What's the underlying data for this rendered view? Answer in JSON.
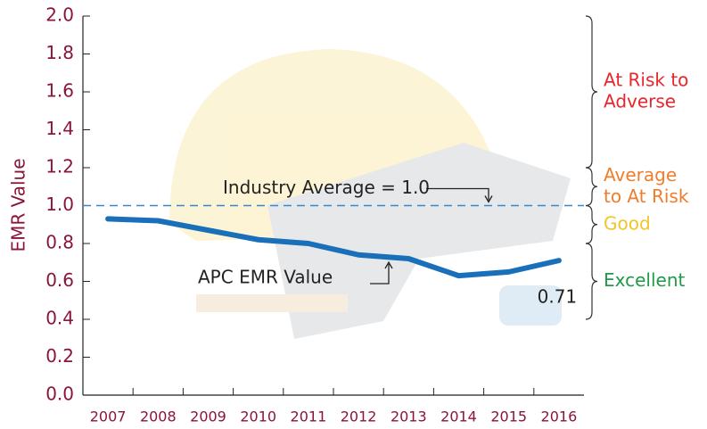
{
  "chart_data": {
    "type": "line",
    "y_label": "EMR Value",
    "categories": [
      "2007",
      "2008",
      "2009",
      "2010",
      "2011",
      "2012",
      "2013",
      "2014",
      "2015",
      "2016"
    ],
    "series": [
      {
        "name": "APC EMR Value",
        "color": "#1a6fba",
        "values": [
          0.93,
          0.92,
          0.87,
          0.82,
          0.8,
          0.74,
          0.72,
          0.63,
          0.65,
          0.71
        ]
      }
    ],
    "ylim": [
      0,
      2
    ],
    "yticks": [
      {
        "value": 0,
        "label": "0.0"
      },
      {
        "value": 0.2,
        "label": "0.2"
      },
      {
        "value": 0.4,
        "label": "0.4"
      },
      {
        "value": 0.6,
        "label": "0.6"
      },
      {
        "value": 0.8,
        "label": "0.8"
      },
      {
        "value": 1,
        "label": "1.0"
      },
      {
        "value": 1.2,
        "label": "1.2"
      },
      {
        "value": 1.4,
        "label": "1.4"
      },
      {
        "value": 1.6,
        "label": "1.6"
      },
      {
        "value": 1.8,
        "label": "1.8"
      },
      {
        "value": 2,
        "label": "2.0"
      }
    ],
    "reference_line": {
      "value": 1,
      "label": "Industry Average = 1.0",
      "color": "#3b86c8"
    },
    "series_annotation": "APC EMR Value",
    "bands": [
      {
        "label": [
          "At Risk to",
          "Adverse"
        ],
        "from": 1.2,
        "to": 2.0,
        "color": "#e8262b"
      },
      {
        "label": [
          "Average",
          "to At Risk"
        ],
        "from": 1.0,
        "to": 1.2,
        "color": "#f07d2c"
      },
      {
        "label": [
          "Good"
        ],
        "from": 0.8,
        "to": 1.0,
        "color": "#f2c52a"
      },
      {
        "label": [
          "Excellent"
        ],
        "from": 0.4,
        "to": 0.8,
        "color": "#1f9a48"
      }
    ]
  }
}
